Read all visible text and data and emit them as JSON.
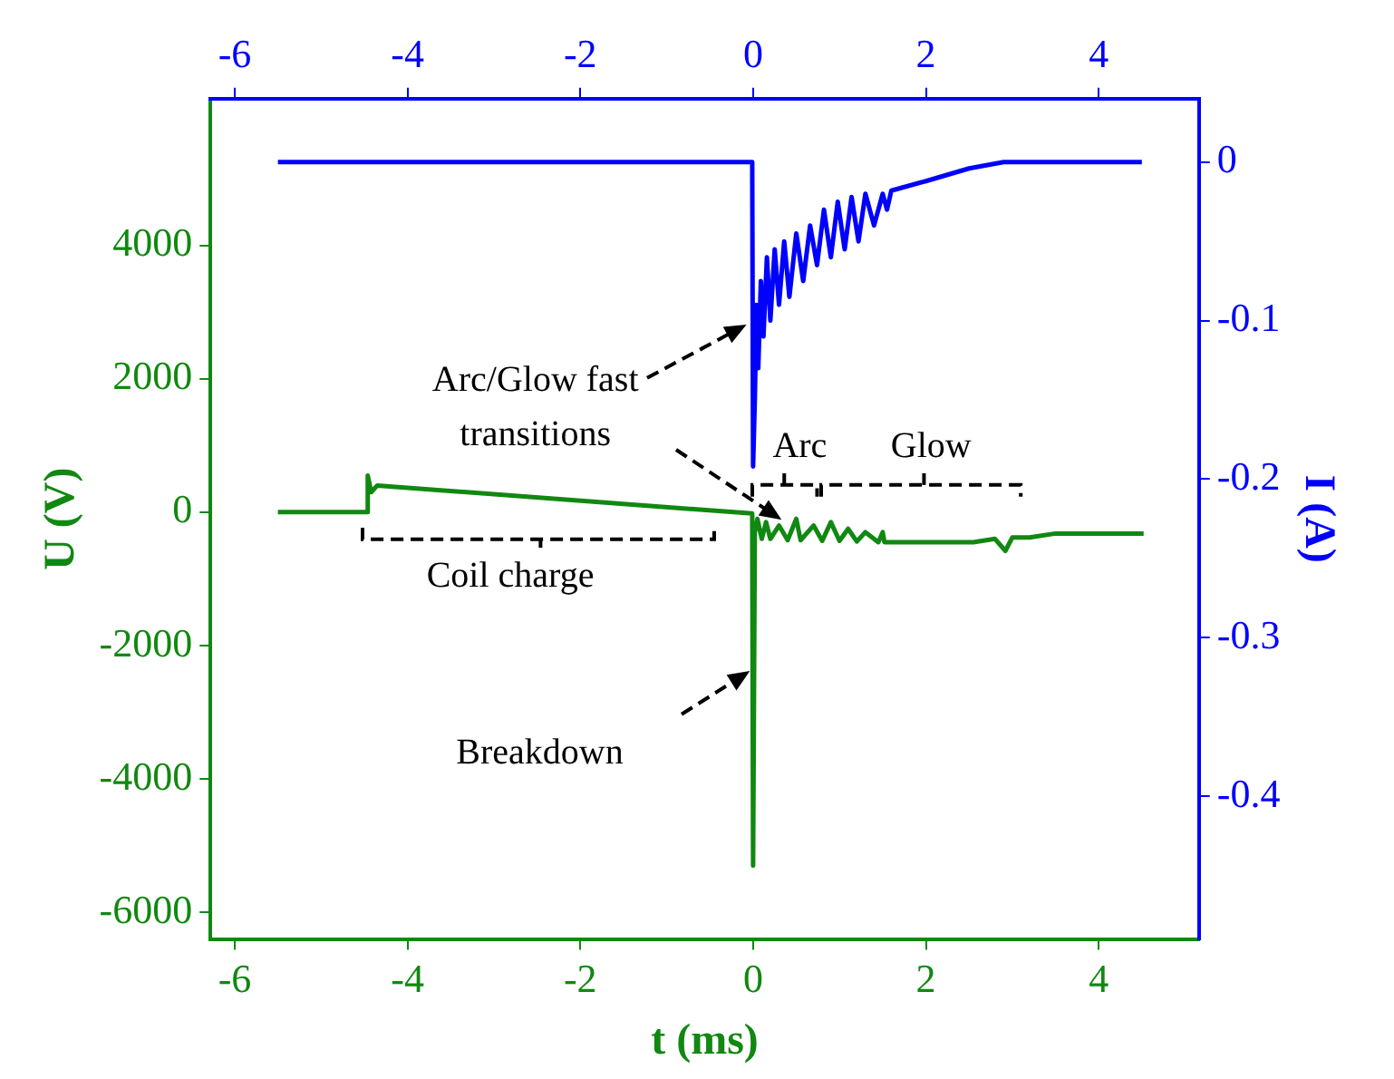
{
  "chart_data": {
    "type": "line",
    "xlabel": "t (ms)",
    "ylabel": "U (V)",
    "y2label": "I (A)",
    "xlim": [
      -6.28,
      5.16
    ],
    "xticks": [
      -6,
      -4,
      -2,
      0,
      2,
      4
    ],
    "x2lim": [
      -6.28,
      5.16
    ],
    "x2ticks": [
      -6,
      -4,
      -2,
      0,
      2,
      4
    ],
    "ylim": [
      -6400,
      6200
    ],
    "yticks": [
      -6000,
      -4000,
      -2000,
      0,
      2000,
      4000
    ],
    "y2lim": [
      -0.49,
      0.04
    ],
    "y2ticks": [
      -0.4,
      -0.3,
      -0.2,
      -0.1,
      0
    ],
    "grid": false,
    "legend": false,
    "marker": "none",
    "line_style": "solid",
    "series": [
      {
        "color": "#118811",
        "axis": "y",
        "x": [
          -5.5,
          -4.47,
          -4.46,
          -4.42,
          -4.35,
          -0.01,
          0,
          0.02,
          0.05,
          0.1,
          0.15,
          0.2,
          0.3,
          0.4,
          0.5,
          0.55,
          0.7,
          0.8,
          0.9,
          1.0,
          1.1,
          1.2,
          1.3,
          1.45,
          1.5,
          1.52,
          2.55,
          2.8,
          2.92,
          3.0,
          3.2,
          3.5,
          4.52
        ],
        "values": [
          0,
          0,
          550,
          300,
          400,
          -20,
          -5300,
          -300,
          -100,
          -400,
          -150,
          -400,
          -200,
          -420,
          -100,
          -420,
          -200,
          -430,
          -150,
          -430,
          -250,
          -440,
          -300,
          -450,
          -300,
          -450,
          -450,
          -400,
          -580,
          -380,
          -380,
          -320,
          -320
        ]
      },
      {
        "color": "#0000ff",
        "axis": "y2",
        "x": [
          -5.5,
          -0.01,
          0,
          0.02,
          0.04,
          0.06,
          0.09,
          0.12,
          0.16,
          0.2,
          0.25,
          0.3,
          0.36,
          0.42,
          0.5,
          0.58,
          0.66,
          0.74,
          0.82,
          0.9,
          0.98,
          1.06,
          1.14,
          1.22,
          1.3,
          1.4,
          1.5,
          1.55,
          1.6,
          2.0,
          2.5,
          2.9,
          4.5
        ],
        "values": [
          0,
          0,
          -0.192,
          -0.15,
          -0.09,
          -0.13,
          -0.075,
          -0.11,
          -0.06,
          -0.1,
          -0.055,
          -0.09,
          -0.05,
          -0.085,
          -0.045,
          -0.075,
          -0.04,
          -0.065,
          -0.03,
          -0.06,
          -0.025,
          -0.055,
          -0.022,
          -0.05,
          -0.02,
          -0.04,
          -0.02,
          -0.03,
          -0.018,
          -0.012,
          -0.004,
          0,
          0
        ]
      }
    ],
    "annotations": [
      "Arc/Glow fast transitions",
      "Arc",
      "Glow",
      "Coil charge",
      "Breakdown"
    ]
  }
}
